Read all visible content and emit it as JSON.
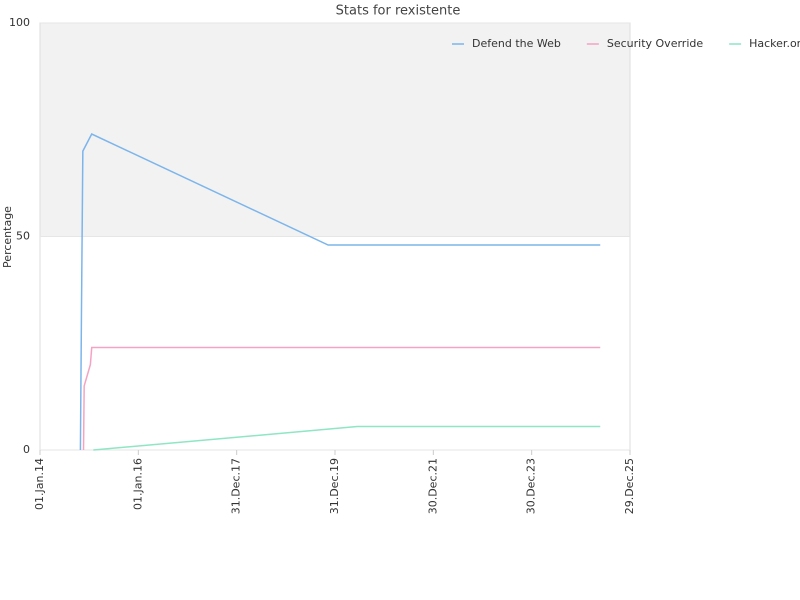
{
  "chart_data": {
    "type": "line",
    "title": "Stats for rexistente",
    "y_label": "Percentage",
    "series": [
      {
        "name": "Defend the Web",
        "color": "#7cb5ec",
        "x": [
          "2014-10-28",
          "2014-11-05",
          "2014-11-15",
          "2015-01-20",
          "2019-11-10",
          "2025-05-22"
        ],
        "values": [
          0,
          33,
          70,
          74,
          48,
          48
        ]
      },
      {
        "name": "Security Override",
        "color": "#f4a3c3",
        "x": [
          "2014-11-20",
          "2014-11-25",
          "2015-01-10",
          "2015-01-20",
          "2025-05-22"
        ],
        "values": [
          0,
          15,
          20,
          24,
          24
        ]
      },
      {
        "name": "Hacker.org",
        "color": "#8ee6c4",
        "x": [
          "2015-02-01",
          "2020-06-13",
          "2025-05-22"
        ],
        "values": [
          0,
          5.5,
          5.5
        ]
      }
    ],
    "xlim": [
      "2014-01-01",
      "2025-12-29"
    ],
    "xticks": [
      {
        "value": "2014-01-01",
        "label": "01.Jan.14"
      },
      {
        "value": "2016-01-01",
        "label": "01.Jan.16"
      },
      {
        "value": "2017-12-31",
        "label": "31.Dec.17"
      },
      {
        "value": "2019-12-31",
        "label": "31.Dec.19"
      },
      {
        "value": "2021-12-30",
        "label": "30.Dec.21"
      },
      {
        "value": "2023-12-30",
        "label": "30.Dec.23"
      },
      {
        "value": "2025-12-29",
        "label": "29.Dec.25"
      }
    ],
    "ylim": [
      0,
      100
    ],
    "yticks": [
      0,
      50,
      100
    ],
    "grid": true,
    "alternate_grid_color": "#f2f2f2",
    "legend": "top-right"
  }
}
